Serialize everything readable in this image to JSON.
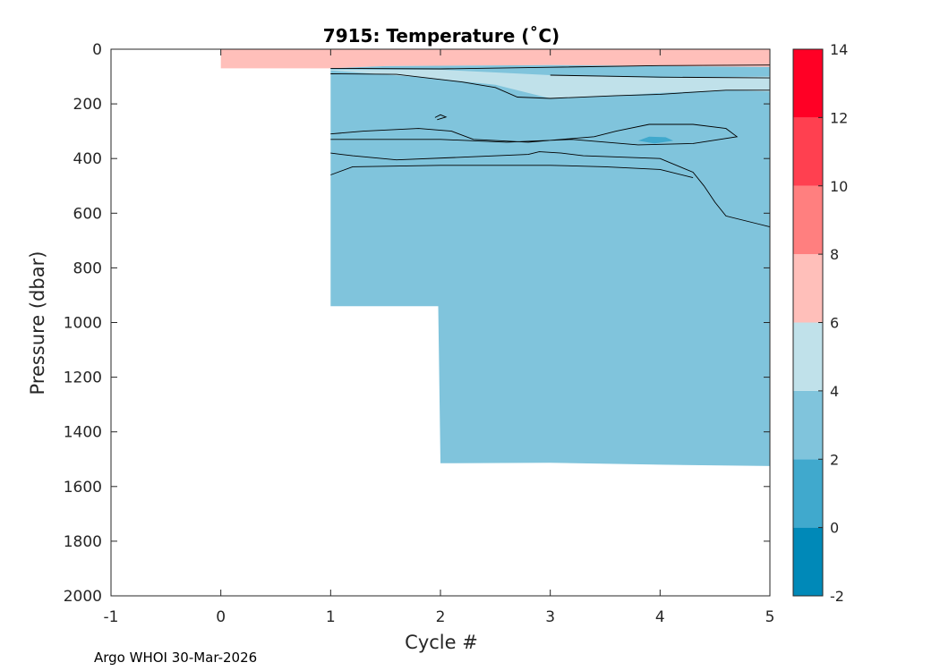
{
  "chart_data": {
    "type": "heatmap",
    "title": "7915:  Temperature (˚C)",
    "xlabel": "Cycle #",
    "ylabel": "Pressure (dbar)",
    "xlim": [
      -1,
      5
    ],
    "ylim": [
      0,
      2000
    ],
    "y_reversed": true,
    "x_ticks": [
      "-1",
      "0",
      "1",
      "2",
      "3",
      "4",
      "5"
    ],
    "y_ticks": [
      "0",
      "200",
      "400",
      "600",
      "800",
      "1000",
      "1200",
      "1400",
      "1600",
      "1800",
      "2000"
    ],
    "colorbar": {
      "range": [
        -2,
        14
      ],
      "ticks": [
        "14",
        "12",
        "10",
        "8",
        "6",
        "4",
        "2",
        "0",
        "-2"
      ],
      "bins": [
        {
          "min": -2,
          "max": 0,
          "color": "#0089b8"
        },
        {
          "min": 0,
          "max": 2,
          "color": "#40a9cd"
        },
        {
          "min": 2,
          "max": 4,
          "color": "#80c4dc"
        },
        {
          "min": 4,
          "max": 6,
          "color": "#c0e1ea"
        },
        {
          "min": 6,
          "max": 8,
          "color": "#ffbfba"
        },
        {
          "min": 8,
          "max": 10,
          "color": "#ff7f7f"
        },
        {
          "min": 10,
          "max": 12,
          "color": "#ff4050"
        },
        {
          "min": 12,
          "max": 14,
          "color": "#ff0025"
        }
      ]
    },
    "profiles": [
      {
        "cycle": 0,
        "max_pressure": 70
      },
      {
        "cycle": 1,
        "max_pressure": 940
      },
      {
        "cycle": 2,
        "max_pressure": 1515
      },
      {
        "cycle": 3,
        "max_pressure": 1515
      },
      {
        "cycle": 4,
        "max_pressure": 1520
      },
      {
        "cycle": 5,
        "max_pressure": 1525
      }
    ],
    "regions": [
      {
        "name": "surface-warm-layer",
        "band": "6-8",
        "polygon": [
          [
            0,
            0
          ],
          [
            5,
            0
          ],
          [
            5,
            65
          ],
          [
            3,
            58
          ],
          [
            1.5,
            62
          ],
          [
            1,
            70
          ],
          [
            0,
            70
          ]
        ]
      },
      {
        "name": "cold-deep-layer",
        "band": "2-4",
        "polygon": [
          [
            1,
            70
          ],
          [
            1.5,
            62
          ],
          [
            3,
            58
          ],
          [
            5,
            65
          ],
          [
            5,
            1525
          ],
          [
            4,
            1520
          ],
          [
            3,
            1513
          ],
          [
            2,
            1515
          ],
          [
            1.98,
            940
          ],
          [
            1,
            940
          ]
        ]
      },
      {
        "name": "upper-cool-layer",
        "band": "4-6",
        "polygon": [
          [
            1,
            78
          ],
          [
            1.9,
            105
          ],
          [
            2.5,
            130
          ],
          [
            3,
            180
          ],
          [
            3.6,
            170
          ],
          [
            4,
            160
          ],
          [
            4.6,
            150
          ],
          [
            5,
            155
          ],
          [
            5,
            100
          ],
          [
            4,
            105
          ],
          [
            3,
            95
          ],
          [
            2,
            75
          ],
          [
            1,
            75
          ]
        ]
      },
      {
        "name": "cold-core-patch",
        "band": "0-2",
        "polygon": [
          [
            3.8,
            335
          ],
          [
            3.9,
            320
          ],
          [
            4.05,
            322
          ],
          [
            4.12,
            335
          ],
          [
            3.95,
            345
          ]
        ]
      }
    ],
    "contours": [
      {
        "level": 4,
        "points": [
          [
            1,
            70
          ],
          [
            2,
            72
          ],
          [
            3,
            66
          ],
          [
            4,
            60
          ],
          [
            5,
            58
          ]
        ]
      },
      {
        "level": 4,
        "points": [
          [
            1,
            90
          ],
          [
            1.6,
            92
          ],
          [
            2.2,
            120
          ],
          [
            2.5,
            140
          ],
          [
            2.7,
            175
          ],
          [
            3,
            180
          ],
          [
            3.6,
            170
          ],
          [
            4,
            165
          ],
          [
            4.6,
            150
          ],
          [
            5,
            150
          ]
        ]
      },
      {
        "level": 4,
        "points": [
          [
            3,
            95
          ],
          [
            4,
            102
          ],
          [
            5,
            105
          ]
        ]
      },
      {
        "level": 2,
        "points": [
          [
            1,
            310
          ],
          [
            1.3,
            300
          ],
          [
            1.8,
            290
          ],
          [
            2.1,
            300
          ],
          [
            2.3,
            330
          ],
          [
            2.8,
            340
          ],
          [
            3.4,
            320
          ],
          [
            3.6,
            300
          ],
          [
            3.9,
            275
          ],
          [
            4.3,
            275
          ],
          [
            4.6,
            290
          ],
          [
            4.7,
            320
          ],
          [
            4.3,
            345
          ],
          [
            3.8,
            350
          ],
          [
            3.2,
            330
          ],
          [
            2.6,
            340
          ],
          [
            2.0,
            330
          ],
          [
            1.5,
            330
          ],
          [
            1,
            330
          ]
        ]
      },
      {
        "level": 2,
        "points": [
          [
            1,
            380
          ],
          [
            1.2,
            390
          ],
          [
            1.6,
            405
          ],
          [
            2.2,
            395
          ],
          [
            2.8,
            385
          ],
          [
            2.9,
            375
          ],
          [
            3.1,
            380
          ],
          [
            3.3,
            390
          ],
          [
            4,
            400
          ],
          [
            4.3,
            450
          ],
          [
            4.4,
            500
          ],
          [
            4.5,
            560
          ],
          [
            4.6,
            610
          ],
          [
            4.9,
            640
          ],
          [
            5,
            650
          ]
        ]
      },
      {
        "level": 2,
        "points": [
          [
            1,
            460
          ],
          [
            1.2,
            430
          ],
          [
            2,
            425
          ],
          [
            3,
            425
          ],
          [
            3.5,
            430
          ],
          [
            4,
            440
          ],
          [
            4.3,
            470
          ]
        ]
      },
      {
        "level": 2,
        "points": [
          [
            1.95,
            250
          ],
          [
            2.0,
            240
          ],
          [
            2.05,
            248
          ],
          [
            1.97,
            258
          ]
        ]
      }
    ]
  },
  "footer": "Argo WHOI 30-Mar-2026"
}
